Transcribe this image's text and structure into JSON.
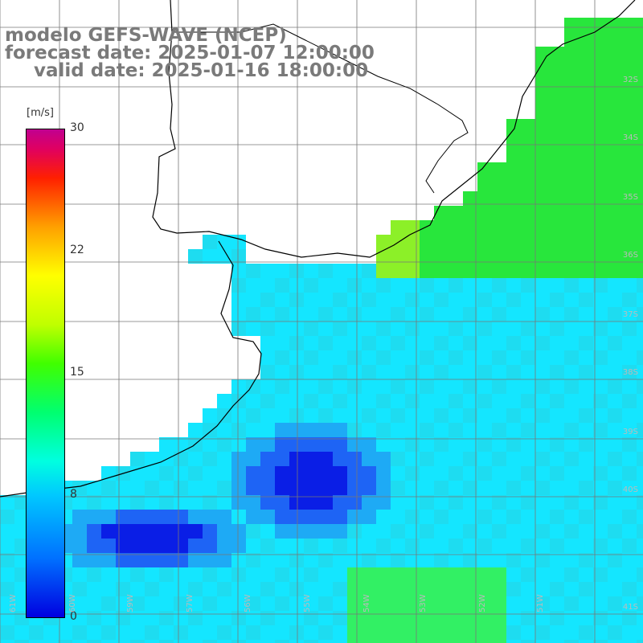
{
  "title": {
    "line1": "modelo GEFS-WAVE (NCEP)",
    "line2": "forecast date: 2025-01-07 12:00:00",
    "line3": "valid date: 2025-01-16 18:00:00"
  },
  "colorbar": {
    "unit": "[m/s]",
    "ticks": [
      "30",
      "22",
      "15",
      "8",
      "0"
    ],
    "range": [
      0,
      30
    ]
  },
  "lat_labels": [
    "32S",
    "34S",
    "35S",
    "36S",
    "37S",
    "38S",
    "39S",
    "40S",
    "41S"
  ],
  "lon_labels": [
    "61W",
    "60W",
    "59W",
    "57W",
    "56W",
    "55W",
    "54W",
    "53W",
    "52W",
    "51W"
  ],
  "colors": {
    "ocean_low": "#0a1ee6",
    "ocean_mid": "#14e6ff",
    "ocean_high": "#28f23c",
    "coast": "#000000",
    "grid": "#777777"
  }
}
